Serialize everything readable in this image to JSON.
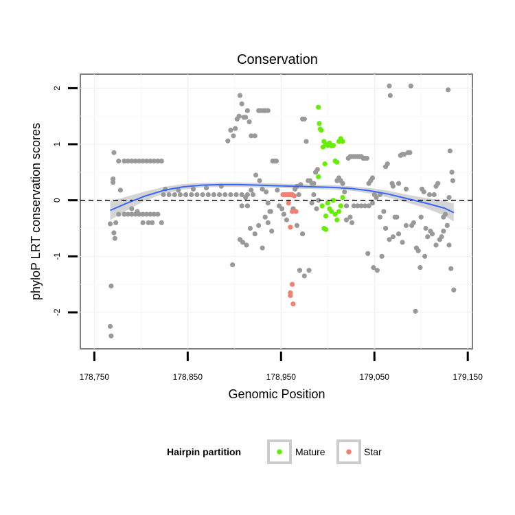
{
  "chart_data": {
    "type": "scatter",
    "title": "Conservation",
    "xlabel": "Genomic Position",
    "ylabel": "phyloP LRT conservation scores",
    "xlim": [
      178735,
      179155
    ],
    "ylim": [
      -2.65,
      2.25
    ],
    "x_ticks": [
      178750,
      178850,
      178950,
      179050,
      179150
    ],
    "x_tick_labels": [
      "178,750",
      "178,850",
      "178,950",
      "179,050",
      "179,150"
    ],
    "y_ticks": [
      -2,
      -1,
      0,
      1,
      2
    ],
    "y_tick_labels": [
      "-2",
      "-1",
      "0",
      "1",
      "2"
    ],
    "grid": true,
    "reference_line": {
      "y": 0,
      "style": "dashed"
    },
    "legend": {
      "title": "Hairpin partition",
      "position": "bottom",
      "entries": [
        {
          "label": "Mature",
          "color": "#66ee00"
        },
        {
          "label": "Star",
          "color": "#f08070"
        }
      ]
    },
    "colors": {
      "other": "#999999",
      "Mature": "#66ee00",
      "Star": "#f08070",
      "smooth": "#3366ff",
      "band": "#cccccc"
    },
    "smooth": {
      "x": [
        178767,
        178785,
        178805,
        178825,
        178845,
        178865,
        178885,
        178905,
        178925,
        178945,
        178965,
        178985,
        179005,
        179025,
        179045,
        179065,
        179085,
        179105,
        179125,
        179135
      ],
      "y": [
        -0.18,
        -0.05,
        0.08,
        0.18,
        0.24,
        0.27,
        0.28,
        0.28,
        0.27,
        0.26,
        0.25,
        0.24,
        0.23,
        0.21,
        0.17,
        0.11,
        0.03,
        -0.05,
        -0.14,
        -0.22
      ],
      "upper": [
        -0.02,
        0.07,
        0.16,
        0.24,
        0.29,
        0.31,
        0.32,
        0.32,
        0.31,
        0.3,
        0.29,
        0.28,
        0.27,
        0.25,
        0.22,
        0.17,
        0.1,
        0.04,
        -0.01,
        -0.06
      ],
      "lower": [
        -0.35,
        -0.18,
        0.0,
        0.12,
        0.19,
        0.23,
        0.24,
        0.24,
        0.23,
        0.22,
        0.21,
        0.2,
        0.19,
        0.17,
        0.12,
        0.05,
        -0.04,
        -0.14,
        -0.27,
        -0.38
      ]
    },
    "series": [
      {
        "group": "other",
        "points": [
          [
            178767,
            -0.42
          ],
          [
            178768,
            -1.53
          ],
          [
            178767,
            -2.25
          ],
          [
            178768,
            -2.42
          ],
          [
            178770,
            0.32
          ],
          [
            178770,
            0.38
          ],
          [
            178771,
            0.85
          ],
          [
            178771,
            -0.58
          ],
          [
            178772,
            -0.68
          ],
          [
            178773,
            -0.4
          ],
          [
            178776,
            0.7
          ],
          [
            178776,
            -0.25
          ],
          [
            178778,
            0.18
          ],
          [
            178782,
            0.7
          ],
          [
            178782,
            -0.25
          ],
          [
            178786,
            0.7
          ],
          [
            178786,
            -0.25
          ],
          [
            178790,
            0.7
          ],
          [
            178790,
            -0.25
          ],
          [
            178794,
            0.7
          ],
          [
            178794,
            -0.25
          ],
          [
            178798,
            0.7
          ],
          [
            178798,
            -0.25
          ],
          [
            178802,
            0.7
          ],
          [
            178802,
            -0.25
          ],
          [
            178806,
            0.7
          ],
          [
            178806,
            -0.25
          ],
          [
            178810,
            0.7
          ],
          [
            178810,
            -0.25
          ],
          [
            178814,
            0.7
          ],
          [
            178814,
            -0.25
          ],
          [
            178818,
            0.7
          ],
          [
            178818,
            -0.25
          ],
          [
            178822,
            0.7
          ],
          [
            178822,
            -0.4
          ],
          [
            178802,
            -0.4
          ],
          [
            178808,
            -0.4
          ],
          [
            178812,
            -0.4
          ],
          [
            178790,
            -0.15
          ],
          [
            178796,
            -0.2
          ],
          [
            178824,
            0.1
          ],
          [
            178830,
            0.1
          ],
          [
            178836,
            0.1
          ],
          [
            178842,
            0.1
          ],
          [
            178848,
            0.1
          ],
          [
            178854,
            0.1
          ],
          [
            178860,
            0.1
          ],
          [
            178866,
            0.1
          ],
          [
            178872,
            0.1
          ],
          [
            178878,
            0.1
          ],
          [
            178884,
            0.1
          ],
          [
            178890,
            0.1
          ],
          [
            178896,
            0.1
          ],
          [
            178902,
            0.1
          ],
          [
            178908,
            0.1
          ],
          [
            178914,
            0.1
          ],
          [
            178920,
            0.1
          ],
          [
            178826,
            0.2
          ],
          [
            178840,
            0.18
          ],
          [
            178856,
            0.2
          ],
          [
            178870,
            0.22
          ],
          [
            178886,
            0.25
          ],
          [
            178893,
            1.06
          ],
          [
            178896,
            1.25
          ],
          [
            178899,
            1.15
          ],
          [
            178901,
            1.28
          ],
          [
            178903,
            1.45
          ],
          [
            178905,
            1.5
          ],
          [
            178906,
            1.87
          ],
          [
            178908,
            1.72
          ],
          [
            178910,
            1.48
          ],
          [
            178912,
            1.48
          ],
          [
            178914,
            1.6
          ],
          [
            178916,
            1.4
          ],
          [
            178918,
            1.15
          ],
          [
            178922,
            1.15
          ],
          [
            178926,
            1.6
          ],
          [
            178928,
            1.6
          ],
          [
            178931,
            1.6
          ],
          [
            178933,
            1.6
          ],
          [
            178936,
            1.6
          ],
          [
            178898,
            -1.15
          ],
          [
            178906,
            -0.7
          ],
          [
            178909,
            -0.75
          ],
          [
            178913,
            -0.8
          ],
          [
            178917,
            -0.5
          ],
          [
            178922,
            -0.6
          ],
          [
            178926,
            -0.45
          ],
          [
            178930,
            -0.85
          ],
          [
            178933,
            -0.3
          ],
          [
            178936,
            -0.4
          ],
          [
            178940,
            -0.55
          ],
          [
            178908,
            -0.1
          ],
          [
            178912,
            0.05
          ],
          [
            178914,
            -0.1
          ],
          [
            178918,
            0.18
          ],
          [
            178923,
            0.45
          ],
          [
            178927,
            0.35
          ],
          [
            178930,
            0.2
          ],
          [
            178934,
            0.15
          ],
          [
            178936,
            -0.05
          ],
          [
            178939,
            -0.2
          ],
          [
            178941,
            0.7
          ],
          [
            178943,
            0.7
          ],
          [
            178945,
            0.7
          ],
          [
            178946,
            0.18
          ],
          [
            178948,
            -0.1
          ],
          [
            178938,
            -0.2
          ],
          [
            178951,
            -0.15
          ],
          [
            178953,
            -0.25
          ],
          [
            178956,
            -0.35
          ],
          [
            178961,
            0.1
          ],
          [
            178963,
            -0.15
          ],
          [
            178965,
            0.2
          ],
          [
            178967,
            0.25
          ],
          [
            178969,
            0.1
          ],
          [
            178971,
            0.28
          ],
          [
            178973,
            1.45
          ],
          [
            178975,
            1.45
          ],
          [
            178977,
            1.05
          ],
          [
            178979,
            0.35
          ],
          [
            178981,
            0.35
          ],
          [
            178983,
            0.3
          ],
          [
            178985,
            0.3
          ],
          [
            178987,
            0.5
          ],
          [
            178989,
            0.55
          ],
          [
            178990,
            0.0
          ],
          [
            178967,
            -0.45
          ],
          [
            178970,
            -1.25
          ],
          [
            178975,
            -1.35
          ],
          [
            178980,
            -1.25
          ],
          [
            178973,
            -0.6
          ],
          [
            178985,
            0.1
          ],
          [
            178988,
            -0.15
          ],
          [
            178983,
            -0.05
          ],
          [
            179010,
            0.35
          ],
          [
            179012,
            0.4
          ],
          [
            179014,
            0.35
          ],
          [
            179016,
            0.3
          ],
          [
            179018,
            0.15
          ],
          [
            179020,
            -0.1
          ],
          [
            179022,
            0.75
          ],
          [
            179024,
            0.78
          ],
          [
            179026,
            0.78
          ],
          [
            179028,
            0.78
          ],
          [
            179030,
            0.78
          ],
          [
            179032,
            0.78
          ],
          [
            179034,
            0.78
          ],
          [
            179036,
            0.78
          ],
          [
            179038,
            0.75
          ],
          [
            179040,
            0.75
          ],
          [
            179042,
            0.75
          ],
          [
            179020,
            -0.35
          ],
          [
            179024,
            -0.3
          ],
          [
            179028,
            -0.1
          ],
          [
            179032,
            -0.1
          ],
          [
            179036,
            -0.1
          ],
          [
            179040,
            -0.1
          ],
          [
            179044,
            -0.1
          ],
          [
            179048,
            -0.05
          ],
          [
            179052,
            0.05
          ],
          [
            179056,
            0.1
          ],
          [
            179026,
            -0.4
          ],
          [
            179044,
            0.3
          ],
          [
            179046,
            0.35
          ],
          [
            179048,
            0.4
          ],
          [
            179050,
            0.1
          ],
          [
            179043,
            -0.95
          ],
          [
            179049,
            -1.2
          ],
          [
            179053,
            -1.25
          ],
          [
            179058,
            -1.0
          ],
          [
            179060,
            -0.2
          ],
          [
            179062,
            0.6
          ],
          [
            179064,
            0.65
          ],
          [
            179066,
            2.04
          ],
          [
            179067,
            1.87
          ],
          [
            179069,
            0.3
          ],
          [
            179070,
            0.25
          ],
          [
            179072,
            -0.3
          ],
          [
            179074,
            -0.3
          ],
          [
            179076,
            0.3
          ],
          [
            179078,
            0.8
          ],
          [
            179080,
            0.82
          ],
          [
            179082,
            0.82
          ],
          [
            179084,
            0.2
          ],
          [
            179086,
            0.85
          ],
          [
            179088,
            0.85
          ],
          [
            179089,
            2.04
          ],
          [
            179090,
            -0.45
          ],
          [
            179092,
            -0.4
          ],
          [
            179094,
            -1.98
          ],
          [
            179095,
            -0.85
          ],
          [
            179097,
            -0.9
          ],
          [
            179099,
            -1.2
          ],
          [
            179101,
            0.2
          ],
          [
            179103,
            0.15
          ],
          [
            179105,
            -0.5
          ],
          [
            179107,
            -0.65
          ],
          [
            179109,
            0.1
          ],
          [
            179110,
            -0.55
          ],
          [
            179112,
            -0.6
          ],
          [
            179114,
            0.1
          ],
          [
            179116,
            0.25
          ],
          [
            179118,
            0.3
          ],
          [
            179120,
            -0.7
          ],
          [
            179122,
            -0.65
          ],
          [
            179124,
            -0.3
          ],
          [
            179126,
            -0.25
          ],
          [
            179128,
            -0.45
          ],
          [
            179129,
            1.97
          ],
          [
            179130,
            0.05
          ],
          [
            179131,
            0.88
          ],
          [
            179132,
            -1.22
          ],
          [
            179133,
            0.5
          ],
          [
            179134,
            0.35
          ],
          [
            179135,
            -1.6
          ],
          [
            179056,
            -0.3
          ],
          [
            179062,
            -0.5
          ],
          [
            179066,
            -0.7
          ],
          [
            179070,
            -0.65
          ],
          [
            179076,
            -0.6
          ],
          [
            179080,
            -0.75
          ],
          [
            179084,
            -0.45
          ],
          [
            179100,
            -0.3
          ],
          [
            179104,
            -1.0
          ],
          [
            179116,
            -0.8
          ],
          [
            179124,
            -0.55
          ],
          [
            179130,
            -0.8
          ]
        ]
      },
      {
        "group": "Mature",
        "points": [
          [
            178990,
            1.66
          ],
          [
            178991,
            1.37
          ],
          [
            178992,
            1.27
          ],
          [
            178993,
            1.25
          ],
          [
            178995,
            0.95
          ],
          [
            178996,
            1.05
          ],
          [
            178998,
            1.0
          ],
          [
            179000,
            0.98
          ],
          [
            179002,
            1.02
          ],
          [
            179004,
            0.97
          ],
          [
            179006,
            0.98
          ],
          [
            179008,
            0.7
          ],
          [
            179010,
            0.68
          ],
          [
            179012,
            1.05
          ],
          [
            179014,
            1.1
          ],
          [
            179016,
            1.05
          ],
          [
            178997,
            0.65
          ],
          [
            178990,
            0.42
          ],
          [
            178994,
            -0.1
          ],
          [
            178998,
            -0.28
          ],
          [
            179000,
            -0.05
          ],
          [
            179002,
            -0.15
          ],
          [
            179004,
            -0.2
          ],
          [
            179006,
            0.0
          ],
          [
            179008,
            -0.25
          ],
          [
            179010,
            -0.35
          ],
          [
            179012,
            -0.2
          ],
          [
            179014,
            -0.1
          ],
          [
            179016,
            0.05
          ],
          [
            178996,
            -0.5
          ],
          [
            178998,
            -0.52
          ]
        ]
      },
      {
        "group": "Star",
        "points": [
          [
            178952,
            0.1
          ],
          [
            178954,
            0.1
          ],
          [
            178956,
            0.1
          ],
          [
            178958,
            0.1
          ],
          [
            178960,
            0.1
          ],
          [
            178962,
            0.1
          ],
          [
            178964,
            0.08
          ],
          [
            178958,
            -0.05
          ],
          [
            178962,
            -0.2
          ],
          [
            178966,
            -0.2
          ],
          [
            178960,
            -0.48
          ],
          [
            178962,
            -1.5
          ],
          [
            178960,
            -1.7
          ],
          [
            178963,
            -1.85
          ],
          [
            178960,
            -1.65
          ]
        ]
      }
    ]
  }
}
